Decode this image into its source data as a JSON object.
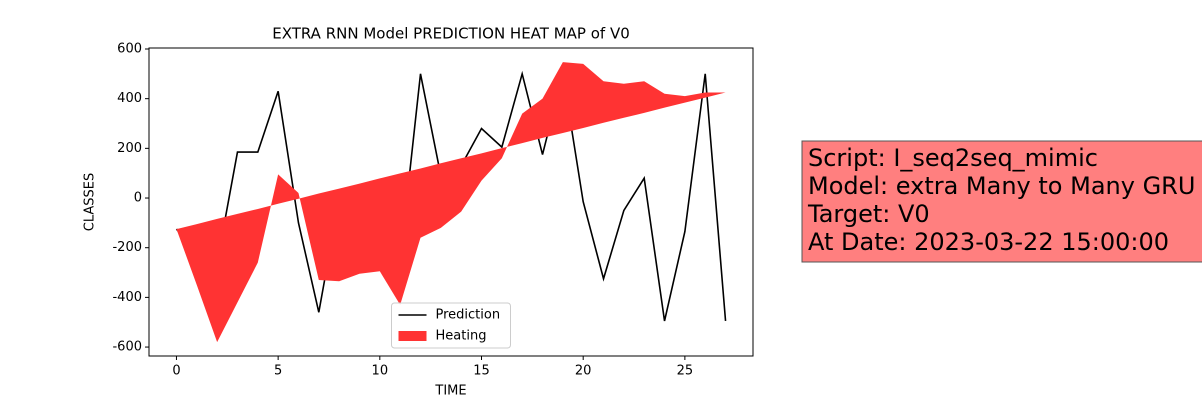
{
  "chart_data": {
    "type": "line",
    "title": "EXTRA RNN Model PREDICTION HEAT MAP of V0",
    "x_label": "TIME",
    "y_label": "CLASSES",
    "x": [
      0,
      1,
      2,
      3,
      4,
      5,
      6,
      7,
      8,
      9,
      10,
      11,
      12,
      13,
      14,
      15,
      16,
      17,
      18,
      19,
      20,
      21,
      22,
      23,
      24,
      25,
      26,
      27
    ],
    "series": [
      {
        "name": "Prediction",
        "color": "#000000",
        "values": [
          -125,
          -220,
          -260,
          185,
          185,
          430,
          -100,
          -460,
          -5,
          50,
          20,
          -250,
          500,
          90,
          130,
          280,
          205,
          500,
          175,
          500,
          -15,
          -325,
          -50,
          80,
          -495,
          -135,
          500,
          -495
        ]
      },
      {
        "name": "Heating",
        "color": "#ff3333",
        "values": [
          -125,
          -350,
          -580,
          -420,
          -260,
          95,
          20,
          -330,
          -335,
          -305,
          -295,
          -430,
          -160,
          -120,
          -55,
          70,
          160,
          340,
          400,
          547,
          540,
          470,
          460,
          470,
          420,
          410,
          425,
          425
        ],
        "baseline": [
          -125,
          -105,
          -84,
          -64,
          -44,
          -23,
          -3,
          18,
          38,
          58,
          79,
          99,
          119,
          140,
          160,
          180,
          201,
          221,
          242,
          262,
          282,
          303,
          323,
          343,
          364,
          384,
          404,
          425
        ]
      }
    ],
    "xlim": [
      -1.35,
      28.35
    ],
    "ylim": [
      -636,
      604
    ],
    "xticks": [
      0,
      5,
      10,
      15,
      20,
      25
    ],
    "yticks": [
      -600,
      -400,
      -200,
      0,
      200,
      400,
      600
    ],
    "legend": "lower center",
    "annotation": [
      "Script: I_seq2seq_mimic",
      "Model: extra Many to Many GRU",
      "Target: V0",
      "At Date: 2023-03-22 15:00:00"
    ]
  }
}
